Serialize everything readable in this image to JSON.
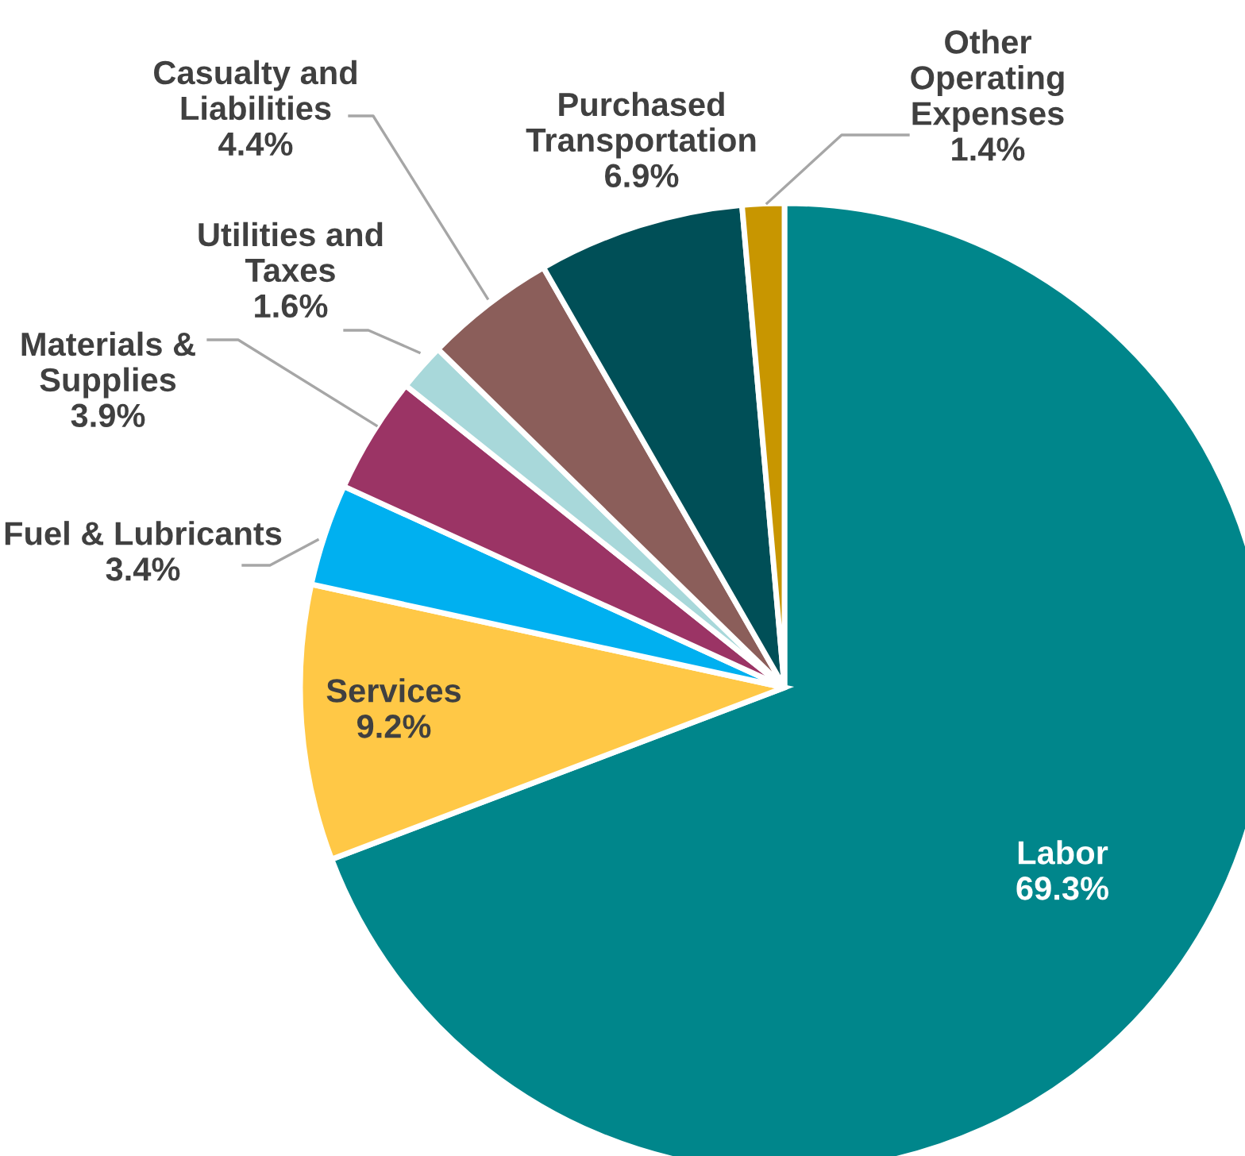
{
  "chart_data": {
    "type": "pie",
    "categories": [
      "Labor",
      "Services",
      "Fuel & Lubricants",
      "Materials & Supplies",
      "Utilities and Taxes",
      "Casualty and Liabilities",
      "Purchased Transportation",
      "Other Operating Expenses"
    ],
    "values": [
      69.3,
      9.2,
      3.4,
      3.9,
      1.6,
      4.4,
      6.9,
      1.4
    ],
    "colors": [
      "#00868b",
      "#ffc846",
      "#00b0f0",
      "#9b3465",
      "#a8d8da",
      "#8b5e5a",
      "#004f57",
      "#c89600"
    ],
    "value_labels": [
      "69.3%",
      "9.2%",
      "3.4%",
      "3.9%",
      "1.6%",
      "4.4%",
      "6.9%",
      "1.4%"
    ],
    "legend": false
  }
}
